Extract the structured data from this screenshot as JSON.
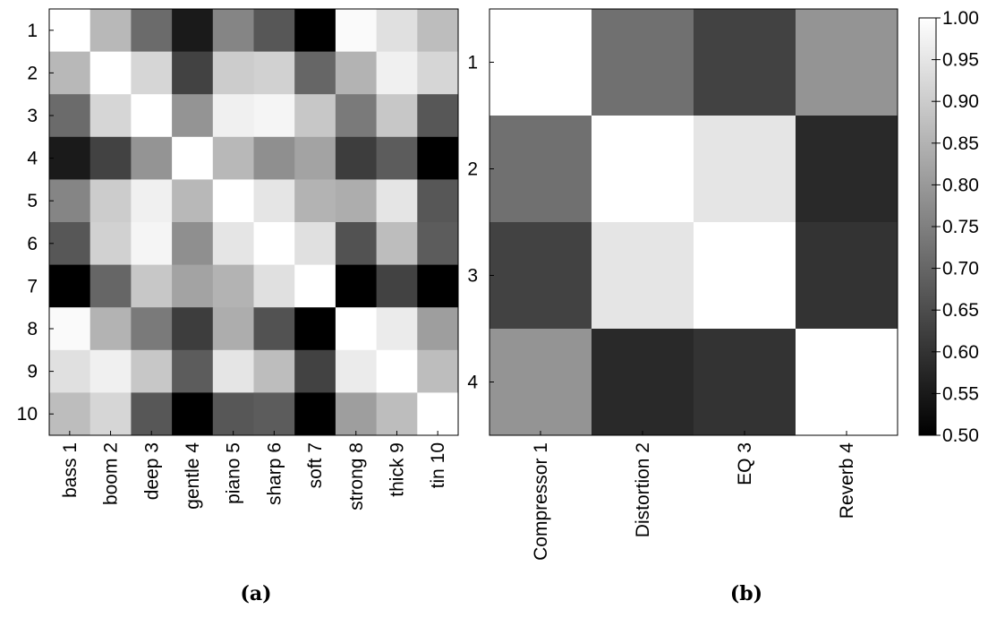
{
  "chart_data": [
    {
      "type": "heatmap",
      "caption": "(a)",
      "row_labels": [
        "1",
        "2",
        "3",
        "4",
        "5",
        "6",
        "7",
        "8",
        "9",
        "10"
      ],
      "col_labels": [
        "bass 1",
        "boom 2",
        "deep 3",
        "gentle 4",
        "piano 5",
        "sharp 6",
        "soft 7",
        "strong 8",
        "thick 9",
        "tin 10"
      ],
      "vmin": 0.5,
      "vmax": 1.0,
      "colormap": "gray",
      "values": [
        [
          1.0,
          0.86,
          0.71,
          0.55,
          0.76,
          0.67,
          0.5,
          0.99,
          0.94,
          0.87
        ],
        [
          0.86,
          1.0,
          0.92,
          0.63,
          0.9,
          0.91,
          0.7,
          0.85,
          0.97,
          0.92
        ],
        [
          0.71,
          0.92,
          1.0,
          0.79,
          0.97,
          0.98,
          0.89,
          0.74,
          0.89,
          0.67
        ],
        [
          0.55,
          0.63,
          0.79,
          1.0,
          0.86,
          0.78,
          0.82,
          0.62,
          0.68,
          0.5
        ],
        [
          0.76,
          0.9,
          0.97,
          0.86,
          1.0,
          0.95,
          0.85,
          0.84,
          0.95,
          0.67
        ],
        [
          0.67,
          0.91,
          0.98,
          0.78,
          0.95,
          1.0,
          0.94,
          0.66,
          0.87,
          0.68
        ],
        [
          0.5,
          0.7,
          0.89,
          0.82,
          0.85,
          0.94,
          1.0,
          0.5,
          0.63,
          0.5
        ],
        [
          0.99,
          0.85,
          0.74,
          0.62,
          0.84,
          0.66,
          0.5,
          1.0,
          0.96,
          0.81
        ],
        [
          0.94,
          0.97,
          0.89,
          0.68,
          0.95,
          0.87,
          0.63,
          0.96,
          1.0,
          0.87
        ],
        [
          0.87,
          0.92,
          0.67,
          0.5,
          0.67,
          0.68,
          0.5,
          0.81,
          0.87,
          1.0
        ]
      ]
    },
    {
      "type": "heatmap",
      "caption": "(b)",
      "row_labels": [
        "1",
        "2",
        "3",
        "4"
      ],
      "col_labels": [
        "Compressor 1",
        "Distortion 2",
        "EQ 3",
        "Reverb 4"
      ],
      "vmin": 0.5,
      "vmax": 1.0,
      "colormap": "gray",
      "values": [
        [
          1.0,
          0.72,
          0.63,
          0.79
        ],
        [
          0.72,
          1.0,
          0.95,
          0.58
        ],
        [
          0.63,
          0.95,
          1.0,
          0.6
        ],
        [
          0.79,
          0.58,
          0.6,
          1.0
        ]
      ]
    }
  ],
  "colorbar": {
    "ticks": [
      "1.00",
      "0.95",
      "0.90",
      "0.85",
      "0.80",
      "0.75",
      "0.70",
      "0.65",
      "0.60",
      "0.55",
      "0.50"
    ]
  }
}
